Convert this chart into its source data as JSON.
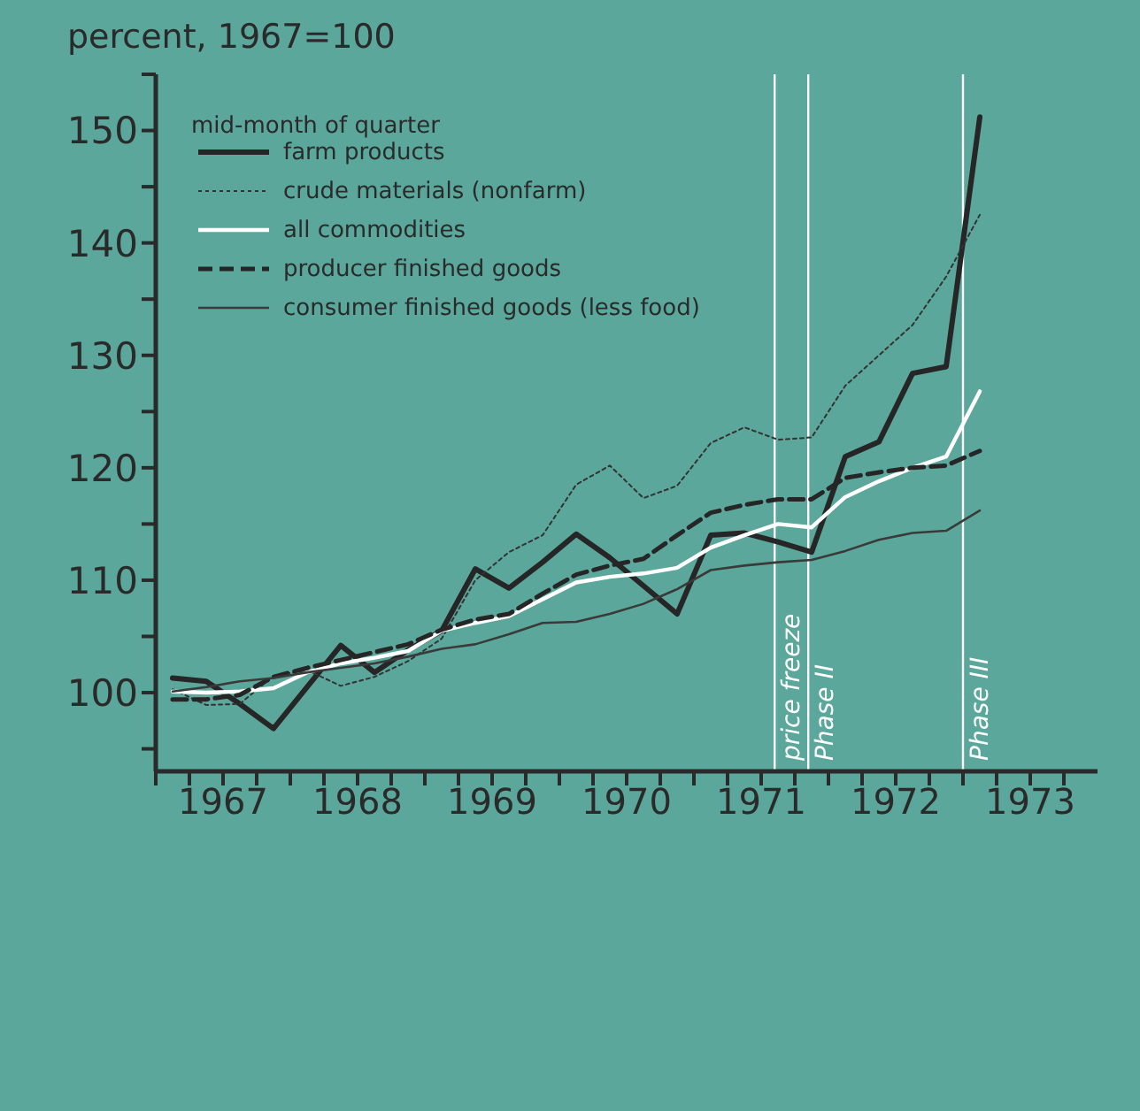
{
  "chart_data": {
    "type": "line",
    "ylabel": "percent, 1967=100",
    "annotations": [
      "mid-month of quarter"
    ],
    "x": [
      1967.125,
      1967.375,
      1967.625,
      1967.875,
      1968.125,
      1968.375,
      1968.625,
      1968.875,
      1969.125,
      1969.375,
      1969.625,
      1969.875,
      1970.125,
      1970.375,
      1970.625,
      1970.875,
      1971.125,
      1971.375,
      1971.625,
      1971.875,
      1972.125,
      1972.375,
      1972.625,
      1972.875,
      1973.125
    ],
    "series": [
      {
        "name": "farm products",
        "color": "#262626",
        "line_style": "solid",
        "values": [
          101.3,
          101.0,
          99.0,
          96.8,
          100.5,
          104.2,
          101.8,
          103.8,
          105.5,
          111.0,
          109.3,
          111.6,
          114.1,
          112.0,
          109.5,
          107.0,
          114.0,
          114.2,
          113.4,
          112.5,
          121.0,
          122.3,
          128.4,
          129.0,
          151.2
        ]
      },
      {
        "name": "crude materials (nonfarm)",
        "color": "#333333",
        "line_style": "dotted",
        "values": [
          100.3,
          98.9,
          99.0,
          101.5,
          102.0,
          100.6,
          101.4,
          102.8,
          104.8,
          110.0,
          112.5,
          114.0,
          118.5,
          120.2,
          117.3,
          118.4,
          122.2,
          123.6,
          122.5,
          122.7,
          127.3,
          130.0,
          132.7,
          137.0,
          142.5
        ]
      },
      {
        "name": "all commodities",
        "color": "#ffffff",
        "line_style": "solid",
        "values": [
          100.1,
          100.0,
          100.1,
          100.4,
          101.8,
          102.6,
          103.1,
          103.7,
          105.5,
          106.2,
          106.8,
          108.3,
          109.8,
          110.3,
          110.6,
          111.1,
          112.9,
          114.0,
          115.0,
          114.7,
          117.4,
          118.8,
          120.0,
          121.0,
          126.8
        ]
      },
      {
        "name": "producer finished goods",
        "color": "#262626",
        "line_style": "dashed",
        "values": [
          99.4,
          99.4,
          99.8,
          101.4,
          102.2,
          102.9,
          103.6,
          104.3,
          105.6,
          106.5,
          107.0,
          108.8,
          110.5,
          111.3,
          111.9,
          114.0,
          116.0,
          116.7,
          117.2,
          117.2,
          119.1,
          119.6,
          120.0,
          120.2,
          121.5
        ]
      },
      {
        "name": "consumer finished goods (less food)",
        "color": "#3a3a3a",
        "line_style": "solid",
        "values": [
          100.1,
          100.5,
          101.0,
          101.3,
          101.8,
          102.2,
          102.6,
          103.2,
          103.9,
          104.3,
          105.2,
          106.2,
          106.3,
          107.0,
          107.9,
          109.2,
          110.9,
          111.3,
          111.6,
          111.8,
          112.6,
          113.6,
          114.2,
          114.4,
          116.2
        ]
      }
    ],
    "xlim": [
      1967,
      1974
    ],
    "xticks": [
      {
        "value": 1967,
        "label": null
      },
      {
        "value": 1967.25,
        "label": null
      },
      {
        "value": 1967.5,
        "label": "1967"
      },
      {
        "value": 1967.75,
        "label": null
      },
      {
        "value": 1968,
        "label": null
      },
      {
        "value": 1968.25,
        "label": null
      },
      {
        "value": 1968.5,
        "label": "1968"
      },
      {
        "value": 1968.75,
        "label": null
      },
      {
        "value": 1969,
        "label": null
      },
      {
        "value": 1969.25,
        "label": null
      },
      {
        "value": 1969.5,
        "label": "1969"
      },
      {
        "value": 1969.75,
        "label": null
      },
      {
        "value": 1970,
        "label": null
      },
      {
        "value": 1970.25,
        "label": null
      },
      {
        "value": 1970.5,
        "label": "1970"
      },
      {
        "value": 1970.75,
        "label": null
      },
      {
        "value": 1971,
        "label": null
      },
      {
        "value": 1971.25,
        "label": null
      },
      {
        "value": 1971.5,
        "label": "1971"
      },
      {
        "value": 1971.75,
        "label": null
      },
      {
        "value": 1972,
        "label": null
      },
      {
        "value": 1972.25,
        "label": null
      },
      {
        "value": 1972.5,
        "label": "1972"
      },
      {
        "value": 1972.75,
        "label": null
      },
      {
        "value": 1973,
        "label": null
      },
      {
        "value": 1973.25,
        "label": null
      },
      {
        "value": 1973.5,
        "label": "1973"
      },
      {
        "value": 1973.75,
        "label": null
      }
    ],
    "ylim": [
      93,
      155
    ],
    "yticks": [
      {
        "value": 95,
        "label": null
      },
      100,
      {
        "value": 105,
        "label": null
      },
      110,
      {
        "value": 115,
        "label": null
      },
      120,
      {
        "value": 125,
        "label": null
      },
      130,
      {
        "value": 135,
        "label": null
      },
      140,
      {
        "value": 145,
        "label": null
      },
      150,
      {
        "value": 155,
        "label": null
      }
    ],
    "ref_lines": [
      {
        "axis": "x",
        "value": 1971.6,
        "label": "price freeze",
        "color": "#ffffff"
      },
      {
        "axis": "x",
        "value": 1971.85,
        "label": "Phase II",
        "color": "#ffffff"
      },
      {
        "axis": "x",
        "value": 1973.0,
        "label": "Phase III",
        "color": "#ffffff"
      }
    ],
    "grid": false,
    "legend": "top left",
    "marker": "none"
  }
}
